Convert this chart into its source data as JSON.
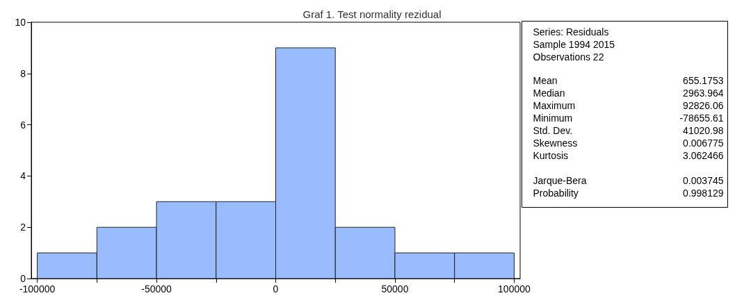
{
  "chart_data": {
    "type": "histogram",
    "title": "Graf 1. Test normality rezidual",
    "bins": [
      -100000,
      -75000,
      -50000,
      -25000,
      0,
      25000,
      50000,
      75000,
      100000
    ],
    "values": [
      1,
      2,
      3,
      3,
      9,
      2,
      1,
      1
    ],
    "color": "#99bbff",
    "xlim": [
      -102500,
      102500
    ],
    "xticks": [
      -100000,
      {
        "value": -75000,
        "label": null
      },
      -50000,
      {
        "value": -25000,
        "label": null
      },
      0,
      {
        "value": 25000,
        "label": null
      },
      50000,
      {
        "value": 75000,
        "label": null
      },
      100000
    ],
    "ylim": [
      0,
      10
    ],
    "yticks": [
      0,
      2,
      4,
      6,
      8,
      10
    ],
    "grid": false,
    "annotations": [
      "Series: Residuals",
      "Sample 1994 2015",
      "Observations 22",
      "Mean",
      "655.1753",
      "Median",
      "2963.964",
      "Maximum",
      "92826.06",
      "Minimum",
      "-78655.61",
      "Std. Dev.",
      "41020.98",
      "Skewness",
      "0.006775",
      "Kurtosis",
      "3.062466",
      "Jarque-Bera",
      "0.003745",
      "Probability",
      "0.998129"
    ]
  }
}
